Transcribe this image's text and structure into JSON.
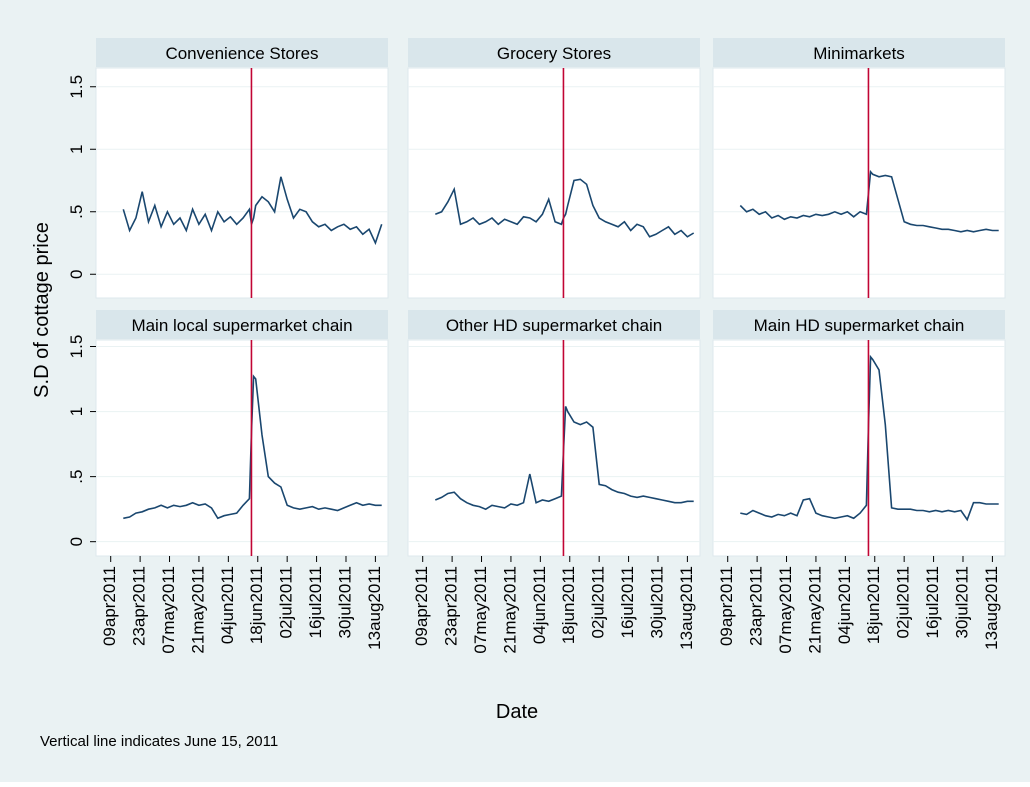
{
  "ylabel": "S.D of cottage price",
  "xlabel": "Date",
  "note": "Vertical line indicates June 15, 2011",
  "chart_data": [
    {
      "type": "line",
      "title": "Convenience Stores",
      "vline": "2011-06-15",
      "vline_color": "#c10534",
      "show_ytick_labels": true,
      "x": [
        "2011-04-15",
        "2011-04-18",
        "2011-04-21",
        "2011-04-24",
        "2011-04-27",
        "2011-04-30",
        "2011-05-03",
        "2011-05-06",
        "2011-05-09",
        "2011-05-12",
        "2011-05-15",
        "2011-05-18",
        "2011-05-21",
        "2011-05-24",
        "2011-05-27",
        "2011-05-30",
        "2011-06-02",
        "2011-06-05",
        "2011-06-08",
        "2011-06-11",
        "2011-06-14",
        "2011-06-15",
        "2011-06-16",
        "2011-06-17",
        "2011-06-20",
        "2011-06-23",
        "2011-06-26",
        "2011-06-29",
        "2011-07-02",
        "2011-07-05",
        "2011-07-08",
        "2011-07-11",
        "2011-07-14",
        "2011-07-17",
        "2011-07-20",
        "2011-07-23",
        "2011-07-26",
        "2011-07-29",
        "2011-08-01",
        "2011-08-04",
        "2011-08-07",
        "2011-08-10",
        "2011-08-13",
        "2011-08-16"
      ],
      "series": [
        {
          "color": "#1a476f",
          "values": [
            0.52,
            0.35,
            0.45,
            0.66,
            0.42,
            0.55,
            0.38,
            0.5,
            0.4,
            0.45,
            0.35,
            0.52,
            0.4,
            0.48,
            0.35,
            0.5,
            0.42,
            0.46,
            0.4,
            0.45,
            0.52,
            0.4,
            0.45,
            0.55,
            0.62,
            0.58,
            0.5,
            0.78,
            0.6,
            0.45,
            0.52,
            0.5,
            0.42,
            0.38,
            0.4,
            0.35,
            0.38,
            0.4,
            0.36,
            0.38,
            0.32,
            0.36,
            0.25,
            0.4
          ]
        }
      ],
      "xlim": [
        "2011-04-02",
        "2011-08-19"
      ],
      "ylim": [
        -0.19,
        1.65
      ],
      "yticks": [
        0,
        {
          "value": 0.5,
          "label": ".5"
        },
        1,
        1.5
      ]
    },
    {
      "type": "line",
      "title": "Grocery Stores",
      "vline": "2011-06-15",
      "vline_color": "#c10534",
      "show_ytick_labels": false,
      "x": [
        "2011-04-15",
        "2011-04-18",
        "2011-04-21",
        "2011-04-24",
        "2011-04-27",
        "2011-04-30",
        "2011-05-03",
        "2011-05-06",
        "2011-05-09",
        "2011-05-12",
        "2011-05-15",
        "2011-05-18",
        "2011-05-21",
        "2011-05-24",
        "2011-05-27",
        "2011-05-30",
        "2011-06-02",
        "2011-06-05",
        "2011-06-08",
        "2011-06-11",
        "2011-06-14",
        "2011-06-15",
        "2011-06-16",
        "2011-06-17",
        "2011-06-20",
        "2011-06-23",
        "2011-06-26",
        "2011-06-29",
        "2011-07-02",
        "2011-07-05",
        "2011-07-08",
        "2011-07-11",
        "2011-07-14",
        "2011-07-17",
        "2011-07-20",
        "2011-07-23",
        "2011-07-26",
        "2011-07-29",
        "2011-08-01",
        "2011-08-04",
        "2011-08-07",
        "2011-08-10",
        "2011-08-13",
        "2011-08-16"
      ],
      "series": [
        {
          "color": "#1a476f",
          "values": [
            0.48,
            0.5,
            0.58,
            0.68,
            0.4,
            0.42,
            0.45,
            0.4,
            0.42,
            0.45,
            0.4,
            0.44,
            0.42,
            0.4,
            0.46,
            0.45,
            0.42,
            0.48,
            0.6,
            0.42,
            0.4,
            0.45,
            0.48,
            0.55,
            0.75,
            0.76,
            0.72,
            0.55,
            0.45,
            0.42,
            0.4,
            0.38,
            0.42,
            0.35,
            0.4,
            0.38,
            0.3,
            0.32,
            0.35,
            0.38,
            0.32,
            0.35,
            0.3,
            0.33
          ]
        }
      ],
      "xlim": [
        "2011-04-02",
        "2011-08-19"
      ],
      "ylim": [
        -0.19,
        1.65
      ],
      "yticks": [
        0,
        {
          "value": 0.5,
          "label": ".5"
        },
        1,
        1.5
      ]
    },
    {
      "type": "line",
      "title": "Minimarkets",
      "vline": "2011-06-15",
      "vline_color": "#c10534",
      "show_ytick_labels": false,
      "x": [
        "2011-04-15",
        "2011-04-18",
        "2011-04-21",
        "2011-04-24",
        "2011-04-27",
        "2011-04-30",
        "2011-05-03",
        "2011-05-06",
        "2011-05-09",
        "2011-05-12",
        "2011-05-15",
        "2011-05-18",
        "2011-05-21",
        "2011-05-24",
        "2011-05-27",
        "2011-05-30",
        "2011-06-02",
        "2011-06-05",
        "2011-06-08",
        "2011-06-11",
        "2011-06-14",
        "2011-06-15",
        "2011-06-16",
        "2011-06-17",
        "2011-06-20",
        "2011-06-23",
        "2011-06-26",
        "2011-06-29",
        "2011-07-02",
        "2011-07-05",
        "2011-07-08",
        "2011-07-11",
        "2011-07-14",
        "2011-07-17",
        "2011-07-20",
        "2011-07-23",
        "2011-07-26",
        "2011-07-29",
        "2011-08-01",
        "2011-08-04",
        "2011-08-07",
        "2011-08-10",
        "2011-08-13",
        "2011-08-16"
      ],
      "series": [
        {
          "color": "#1a476f",
          "values": [
            0.55,
            0.5,
            0.52,
            0.48,
            0.5,
            0.45,
            0.47,
            0.44,
            0.46,
            0.45,
            0.47,
            0.46,
            0.48,
            0.47,
            0.48,
            0.5,
            0.48,
            0.5,
            0.46,
            0.5,
            0.48,
            0.65,
            0.82,
            0.8,
            0.78,
            0.79,
            0.78,
            0.6,
            0.42,
            0.4,
            0.39,
            0.39,
            0.38,
            0.37,
            0.36,
            0.36,
            0.35,
            0.34,
            0.35,
            0.34,
            0.35,
            0.36,
            0.35,
            0.35
          ]
        }
      ],
      "xlim": [
        "2011-04-02",
        "2011-08-19"
      ],
      "ylim": [
        -0.19,
        1.65
      ],
      "yticks": [
        0,
        {
          "value": 0.5,
          "label": ".5"
        },
        1,
        1.5
      ]
    },
    {
      "type": "line",
      "title": "Main local supermarket chain",
      "vline": "2011-06-15",
      "vline_color": "#c10534",
      "show_ytick_labels": true,
      "x": [
        "2011-04-15",
        "2011-04-18",
        "2011-04-21",
        "2011-04-24",
        "2011-04-27",
        "2011-04-30",
        "2011-05-03",
        "2011-05-06",
        "2011-05-09",
        "2011-05-12",
        "2011-05-15",
        "2011-05-18",
        "2011-05-21",
        "2011-05-24",
        "2011-05-27",
        "2011-05-30",
        "2011-06-02",
        "2011-06-05",
        "2011-06-08",
        "2011-06-11",
        "2011-06-14",
        "2011-06-15",
        "2011-06-16",
        "2011-06-17",
        "2011-06-20",
        "2011-06-23",
        "2011-06-26",
        "2011-06-29",
        "2011-07-02",
        "2011-07-05",
        "2011-07-08",
        "2011-07-11",
        "2011-07-14",
        "2011-07-17",
        "2011-07-20",
        "2011-07-23",
        "2011-07-26",
        "2011-07-29",
        "2011-08-01",
        "2011-08-04",
        "2011-08-07",
        "2011-08-10",
        "2011-08-13",
        "2011-08-16"
      ],
      "series": [
        {
          "color": "#1a476f",
          "values": [
            0.18,
            0.19,
            0.22,
            0.23,
            0.25,
            0.26,
            0.28,
            0.26,
            0.28,
            0.27,
            0.28,
            0.3,
            0.28,
            0.29,
            0.26,
            0.18,
            0.2,
            0.21,
            0.22,
            0.28,
            0.33,
            0.85,
            1.27,
            1.25,
            0.82,
            0.5,
            0.45,
            0.42,
            0.28,
            0.26,
            0.25,
            0.26,
            0.27,
            0.25,
            0.26,
            0.25,
            0.24,
            0.26,
            0.28,
            0.3,
            0.28,
            0.29,
            0.28,
            0.28
          ]
        }
      ],
      "xlim": [
        "2011-04-02",
        "2011-08-19"
      ],
      "ylim": [
        -0.11,
        1.55
      ],
      "yticks": [
        0,
        {
          "value": 0.5,
          "label": ".5"
        },
        1,
        1.5
      ],
      "xticks": [
        {
          "value": "2011-04-09",
          "label": "09apr2011"
        },
        {
          "value": "2011-04-23",
          "label": "23apr2011"
        },
        {
          "value": "2011-05-07",
          "label": "07may2011"
        },
        {
          "value": "2011-05-21",
          "label": "21may2011"
        },
        {
          "value": "2011-06-04",
          "label": "04jun2011"
        },
        {
          "value": "2011-06-18",
          "label": "18jun2011"
        },
        {
          "value": "2011-07-02",
          "label": "02jul2011"
        },
        {
          "value": "2011-07-16",
          "label": "16jul2011"
        },
        {
          "value": "2011-07-30",
          "label": "30jul2011"
        },
        {
          "value": "2011-08-13",
          "label": "13aug2011"
        }
      ]
    },
    {
      "type": "line",
      "title": "Other HD supermarket chain",
      "vline": "2011-06-15",
      "vline_color": "#c10534",
      "show_ytick_labels": false,
      "x": [
        "2011-04-15",
        "2011-04-18",
        "2011-04-21",
        "2011-04-24",
        "2011-04-27",
        "2011-04-30",
        "2011-05-03",
        "2011-05-06",
        "2011-05-09",
        "2011-05-12",
        "2011-05-15",
        "2011-05-18",
        "2011-05-21",
        "2011-05-24",
        "2011-05-27",
        "2011-05-30",
        "2011-06-02",
        "2011-06-05",
        "2011-06-08",
        "2011-06-11",
        "2011-06-14",
        "2011-06-15",
        "2011-06-16",
        "2011-06-17",
        "2011-06-20",
        "2011-06-23",
        "2011-06-26",
        "2011-06-29",
        "2011-07-02",
        "2011-07-05",
        "2011-07-08",
        "2011-07-11",
        "2011-07-14",
        "2011-07-17",
        "2011-07-20",
        "2011-07-23",
        "2011-07-26",
        "2011-07-29",
        "2011-08-01",
        "2011-08-04",
        "2011-08-07",
        "2011-08-10",
        "2011-08-13",
        "2011-08-16"
      ],
      "series": [
        {
          "color": "#1a476f",
          "values": [
            0.32,
            0.34,
            0.37,
            0.38,
            0.33,
            0.3,
            0.28,
            0.27,
            0.25,
            0.28,
            0.27,
            0.26,
            0.29,
            0.28,
            0.3,
            0.52,
            0.3,
            0.32,
            0.31,
            0.33,
            0.35,
            0.7,
            1.04,
            1.0,
            0.92,
            0.9,
            0.92,
            0.88,
            0.44,
            0.43,
            0.4,
            0.38,
            0.37,
            0.35,
            0.34,
            0.35,
            0.34,
            0.33,
            0.32,
            0.31,
            0.3,
            0.3,
            0.31,
            0.31
          ]
        }
      ],
      "xlim": [
        "2011-04-02",
        "2011-08-19"
      ],
      "ylim": [
        -0.11,
        1.55
      ],
      "yticks": [
        0,
        {
          "value": 0.5,
          "label": ".5"
        },
        1,
        1.5
      ],
      "xticks": [
        {
          "value": "2011-04-09",
          "label": "09apr2011"
        },
        {
          "value": "2011-04-23",
          "label": "23apr2011"
        },
        {
          "value": "2011-05-07",
          "label": "07may2011"
        },
        {
          "value": "2011-05-21",
          "label": "21may2011"
        },
        {
          "value": "2011-06-04",
          "label": "04jun2011"
        },
        {
          "value": "2011-06-18",
          "label": "18jun2011"
        },
        {
          "value": "2011-07-02",
          "label": "02jul2011"
        },
        {
          "value": "2011-07-16",
          "label": "16jul2011"
        },
        {
          "value": "2011-07-30",
          "label": "30jul2011"
        },
        {
          "value": "2011-08-13",
          "label": "13aug2011"
        }
      ]
    },
    {
      "type": "line",
      "title": "Main HD supermarket chain",
      "vline": "2011-06-15",
      "vline_color": "#c10534",
      "show_ytick_labels": false,
      "x": [
        "2011-04-15",
        "2011-04-18",
        "2011-04-21",
        "2011-04-24",
        "2011-04-27",
        "2011-04-30",
        "2011-05-03",
        "2011-05-06",
        "2011-05-09",
        "2011-05-12",
        "2011-05-15",
        "2011-05-18",
        "2011-05-21",
        "2011-05-24",
        "2011-05-27",
        "2011-05-30",
        "2011-06-02",
        "2011-06-05",
        "2011-06-08",
        "2011-06-11",
        "2011-06-14",
        "2011-06-15",
        "2011-06-16",
        "2011-06-17",
        "2011-06-20",
        "2011-06-23",
        "2011-06-26",
        "2011-06-29",
        "2011-07-02",
        "2011-07-05",
        "2011-07-08",
        "2011-07-11",
        "2011-07-14",
        "2011-07-17",
        "2011-07-20",
        "2011-07-23",
        "2011-07-26",
        "2011-07-29",
        "2011-08-01",
        "2011-08-04",
        "2011-08-07",
        "2011-08-10",
        "2011-08-13",
        "2011-08-16"
      ],
      "series": [
        {
          "color": "#1a476f",
          "values": [
            0.22,
            0.21,
            0.24,
            0.22,
            0.2,
            0.19,
            0.21,
            0.2,
            0.22,
            0.2,
            0.32,
            0.33,
            0.22,
            0.2,
            0.19,
            0.18,
            0.19,
            0.2,
            0.18,
            0.22,
            0.28,
            0.9,
            1.42,
            1.4,
            1.32,
            0.9,
            0.26,
            0.25,
            0.25,
            0.25,
            0.24,
            0.24,
            0.23,
            0.24,
            0.23,
            0.24,
            0.23,
            0.24,
            0.17,
            0.3,
            0.3,
            0.29,
            0.29,
            0.29
          ]
        }
      ],
      "xlim": [
        "2011-04-02",
        "2011-08-19"
      ],
      "ylim": [
        -0.11,
        1.55
      ],
      "yticks": [
        0,
        {
          "value": 0.5,
          "label": ".5"
        },
        1,
        1.5
      ],
      "xticks": [
        {
          "value": "2011-04-09",
          "label": "09apr2011"
        },
        {
          "value": "2011-04-23",
          "label": "23apr2011"
        },
        {
          "value": "2011-05-07",
          "label": "07may2011"
        },
        {
          "value": "2011-05-21",
          "label": "21may2011"
        },
        {
          "value": "2011-06-04",
          "label": "04jun2011"
        },
        {
          "value": "2011-06-18",
          "label": "18jun2011"
        },
        {
          "value": "2011-07-02",
          "label": "02jul2011"
        },
        {
          "value": "2011-07-16",
          "label": "16jul2011"
        },
        {
          "value": "2011-07-30",
          "label": "30jul2011"
        },
        {
          "value": "2011-08-13",
          "label": "13aug2011"
        }
      ]
    }
  ]
}
